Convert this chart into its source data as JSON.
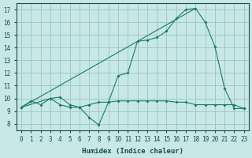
{
  "xlabel": "Humidex (Indice chaleur)",
  "bg_color": "#c8e8e8",
  "grid_color": "#a0c8c8",
  "line_color": "#1a7a6a",
  "xlim": [
    -0.5,
    23.5
  ],
  "ylim": [
    7.5,
    17.5
  ],
  "xticks": [
    0,
    1,
    2,
    3,
    4,
    5,
    6,
    7,
    8,
    9,
    10,
    11,
    12,
    13,
    14,
    15,
    16,
    17,
    18,
    19,
    20,
    21,
    22,
    23
  ],
  "yticks": [
    8,
    9,
    10,
    11,
    12,
    13,
    14,
    15,
    16,
    17
  ],
  "line1_x": [
    0,
    1,
    2,
    3,
    4,
    5,
    6,
    7,
    8,
    9,
    10,
    11,
    12,
    13,
    14,
    15,
    16,
    17,
    18,
    19,
    20,
    21,
    22,
    23
  ],
  "line1_y": [
    9.3,
    9.8,
    9.5,
    10.0,
    9.5,
    9.3,
    9.3,
    9.5,
    9.7,
    9.7,
    9.8,
    9.8,
    9.8,
    9.8,
    9.8,
    9.8,
    9.7,
    9.7,
    9.5,
    9.5,
    9.5,
    9.5,
    9.5,
    9.2
  ],
  "line2_x": [
    0,
    3,
    4,
    5,
    6,
    7,
    8,
    9,
    10,
    11,
    12,
    13,
    14,
    15,
    16,
    17,
    18,
    19,
    20,
    21,
    22,
    23
  ],
  "line2_y": [
    9.3,
    10.0,
    10.1,
    9.5,
    9.3,
    8.5,
    7.9,
    9.7,
    11.8,
    12.0,
    14.5,
    14.6,
    14.8,
    15.3,
    16.3,
    17.0,
    17.1,
    16.0,
    14.1,
    10.8,
    9.2,
    9.2
  ],
  "line3_x": [
    0,
    18
  ],
  "line3_y": [
    9.3,
    17.1
  ]
}
